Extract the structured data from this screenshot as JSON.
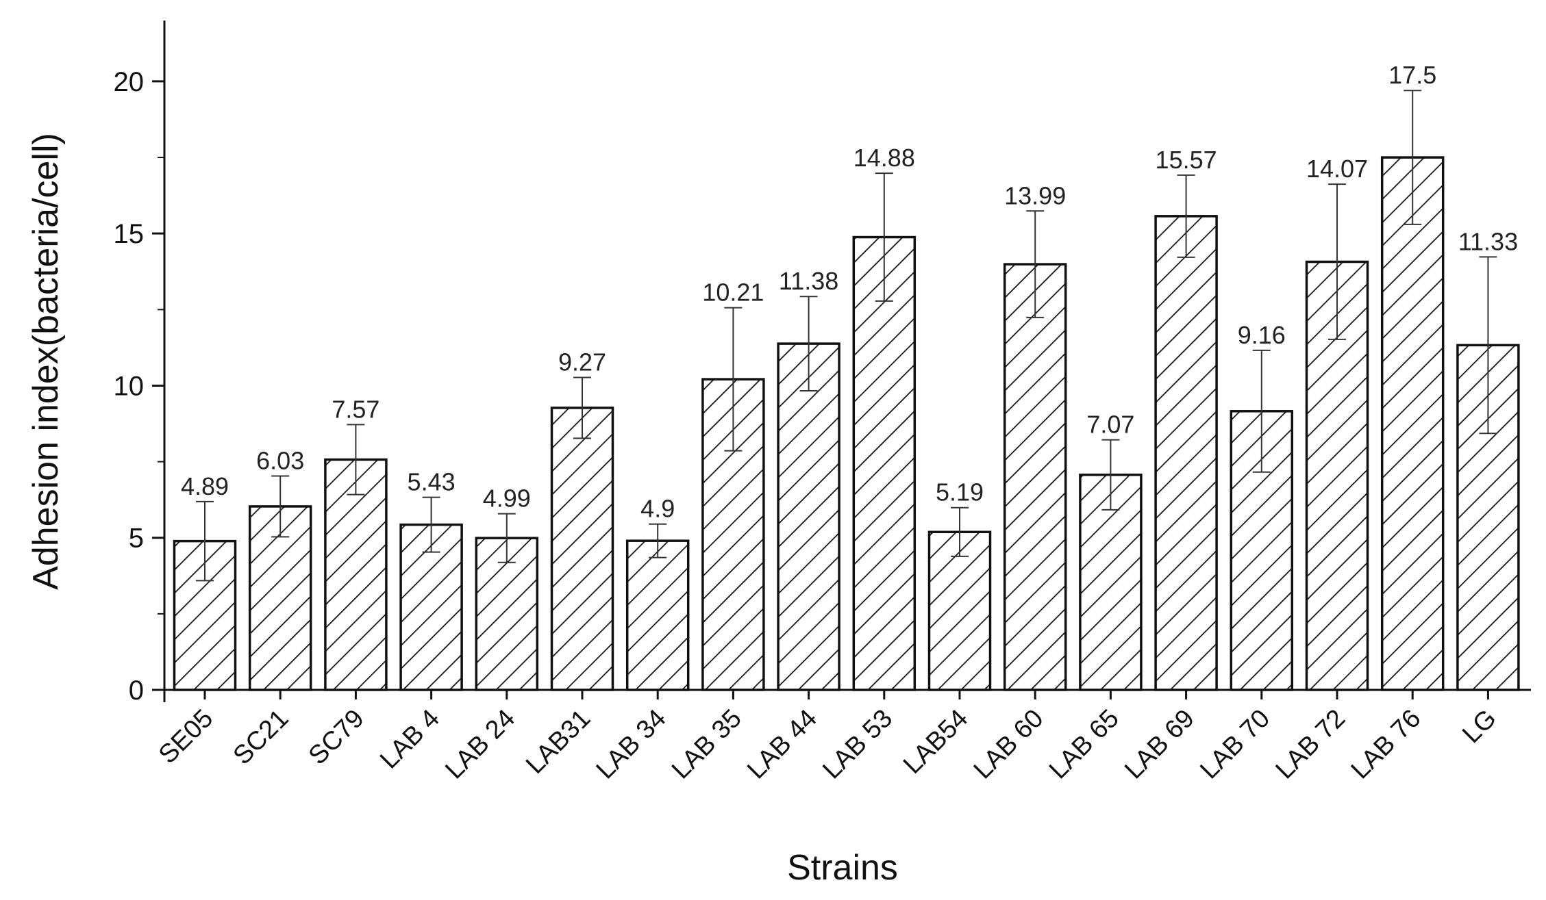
{
  "chart_data": {
    "type": "bar",
    "title": "",
    "xlabel": "Strains",
    "ylabel": "Adhesion index(bacteria/cell)",
    "ylim": [
      0,
      22
    ],
    "yticks": [
      0,
      5,
      10,
      15,
      20
    ],
    "ytick_labels": [
      "0",
      "5",
      "10",
      "15",
      "20"
    ],
    "grid": false,
    "fill_pattern": "diagonal-hatch",
    "bar_color": "#ffffff",
    "edge_color": "#111111",
    "categories": [
      "SE05",
      "SC21",
      "SC79",
      "LAB 4",
      "LAB 24",
      "LAB31",
      "LAB 34",
      "LAB 35",
      "LAB 44",
      "LAB 53",
      "LAB54",
      "LAB 60",
      "LAB 65",
      "LAB 69",
      "LAB 70",
      "LAB 72",
      "LAB 76",
      "LG"
    ],
    "values": [
      4.89,
      6.03,
      7.57,
      5.43,
      4.99,
      9.27,
      4.9,
      10.21,
      11.38,
      14.88,
      5.19,
      13.99,
      7.07,
      15.57,
      9.16,
      14.07,
      17.5,
      11.33
    ],
    "data_labels": [
      "4.89",
      "6.03",
      "7.57",
      "5.43",
      "4.99",
      "9.27",
      "4.9",
      "10.21",
      "11.38",
      "14.88",
      "5.19",
      "13.99",
      "7.07",
      "15.57",
      "9.16",
      "14.07",
      "17.5",
      "11.33"
    ],
    "errors": [
      1.3,
      1.0,
      1.15,
      0.9,
      0.8,
      1.0,
      0.55,
      2.35,
      1.55,
      2.1,
      0.8,
      1.75,
      1.15,
      1.35,
      2.0,
      2.55,
      2.2,
      2.9
    ]
  }
}
